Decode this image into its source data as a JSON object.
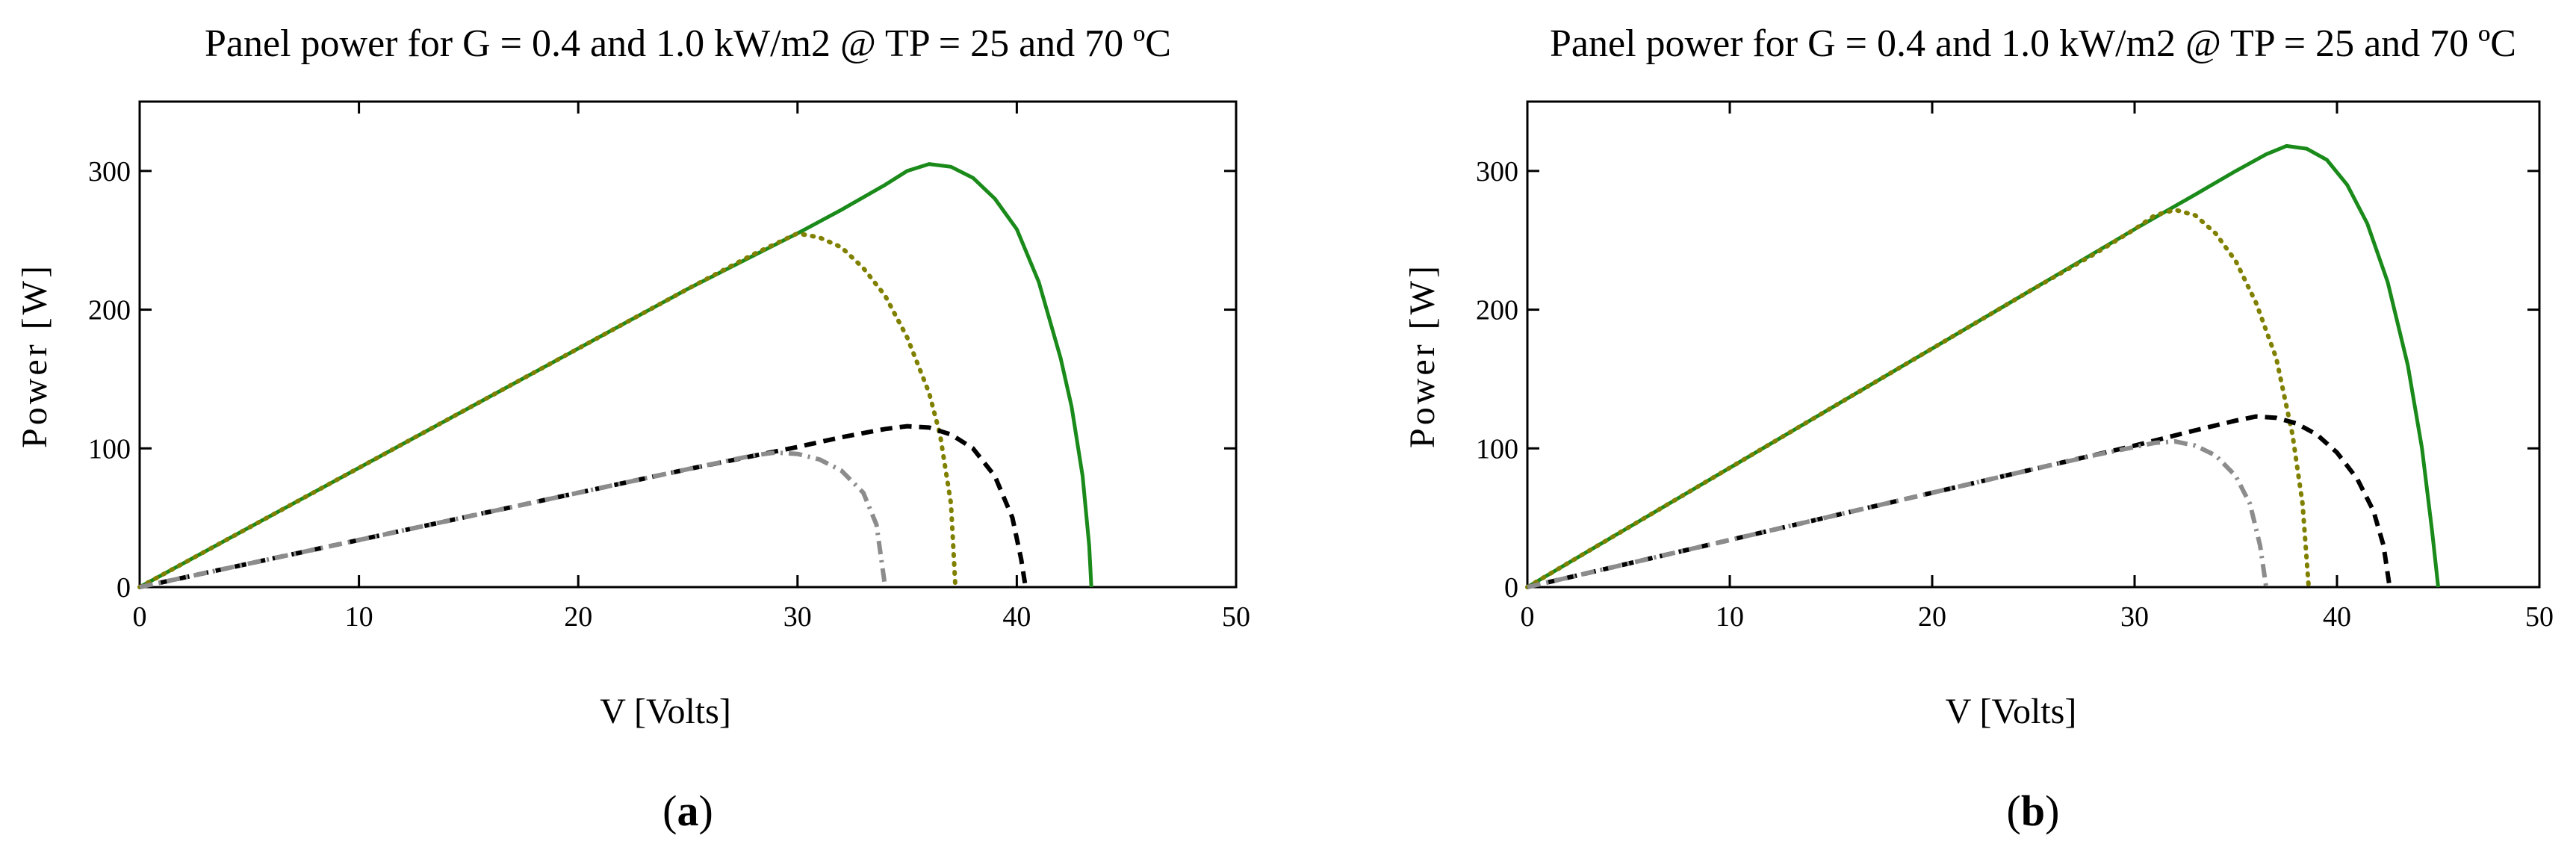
{
  "chart_data": [
    {
      "type": "line",
      "panel_label": "(a)",
      "title": "Panel power for G = 0.4 and 1.0 kW/m2 @ TP = 25 and 70 ºC",
      "xlabel": "V [Volts]",
      "ylabel": "Power [W]",
      "xlim": [
        0,
        50
      ],
      "ylim": [
        0,
        350
      ],
      "xticks": [
        0,
        10,
        20,
        30,
        40,
        50
      ],
      "yticks": [
        0,
        100,
        200,
        300
      ],
      "grid": false,
      "series": [
        {
          "color": "#1a8a1a",
          "style": "solid",
          "points": [
            [
              0,
              0
            ],
            [
              5,
              43
            ],
            [
              10,
              86
            ],
            [
              15,
              129
            ],
            [
              20,
              172
            ],
            [
              25,
              215
            ],
            [
              30,
              255
            ],
            [
              32,
              272
            ],
            [
              34,
              290
            ],
            [
              35,
              300
            ],
            [
              36,
              305
            ],
            [
              37,
              303
            ],
            [
              38,
              295
            ],
            [
              39,
              280
            ],
            [
              40,
              258
            ],
            [
              41,
              220
            ],
            [
              42,
              165
            ],
            [
              42.5,
              130
            ],
            [
              43,
              80
            ],
            [
              43.3,
              30
            ],
            [
              43.4,
              0
            ]
          ]
        },
        {
          "color": "#808000",
          "style": "dotted",
          "points": [
            [
              0,
              0
            ],
            [
              5,
              43
            ],
            [
              10,
              86
            ],
            [
              15,
              129
            ],
            [
              20,
              172
            ],
            [
              25,
              215
            ],
            [
              28,
              240
            ],
            [
              30,
              255
            ],
            [
              31,
              252
            ],
            [
              32,
              245
            ],
            [
              33,
              230
            ],
            [
              34,
              210
            ],
            [
              35,
              180
            ],
            [
              36,
              140
            ],
            [
              36.5,
              110
            ],
            [
              37,
              60
            ],
            [
              37.2,
              0
            ]
          ]
        },
        {
          "color": "#000000",
          "style": "dashed",
          "points": [
            [
              0,
              0
            ],
            [
              5,
              17
            ],
            [
              10,
              34
            ],
            [
              15,
              51
            ],
            [
              20,
              68
            ],
            [
              25,
              85
            ],
            [
              30,
              101
            ],
            [
              32,
              108
            ],
            [
              34,
              114
            ],
            [
              35,
              116
            ],
            [
              36,
              115
            ],
            [
              37,
              110
            ],
            [
              38,
              100
            ],
            [
              39,
              80
            ],
            [
              39.8,
              50
            ],
            [
              40.2,
              20
            ],
            [
              40.4,
              0
            ]
          ]
        },
        {
          "color": "#8c8c8c",
          "style": "dash-dot",
          "points": [
            [
              0,
              0
            ],
            [
              5,
              17
            ],
            [
              10,
              34
            ],
            [
              15,
              51
            ],
            [
              20,
              68
            ],
            [
              25,
              85
            ],
            [
              28,
              95
            ],
            [
              29,
              97
            ],
            [
              30,
              96
            ],
            [
              31,
              92
            ],
            [
              32,
              84
            ],
            [
              33,
              68
            ],
            [
              33.6,
              45
            ],
            [
              34,
              0
            ]
          ]
        }
      ]
    },
    {
      "type": "line",
      "panel_label": "(b)",
      "title": "Panel power for G = 0.4 and 1.0 kW/m2 @ TP = 25 and 70 ºC",
      "xlabel": "V [Volts]",
      "ylabel": "Power [W]",
      "xlim": [
        0,
        50
      ],
      "ylim": [
        0,
        350
      ],
      "xticks": [
        0,
        10,
        20,
        30,
        40,
        50
      ],
      "yticks": [
        0,
        100,
        200,
        300
      ],
      "grid": false,
      "series": [
        {
          "color": "#1a8a1a",
          "style": "solid",
          "points": [
            [
              0,
              0
            ],
            [
              5,
              43
            ],
            [
              10,
              86
            ],
            [
              15,
              129
            ],
            [
              20,
              172
            ],
            [
              25,
              215
            ],
            [
              30,
              258
            ],
            [
              33,
              283
            ],
            [
              35,
              300
            ],
            [
              36.5,
              312
            ],
            [
              37.5,
              318
            ],
            [
              38.5,
              316
            ],
            [
              39.5,
              308
            ],
            [
              40.5,
              290
            ],
            [
              41.5,
              262
            ],
            [
              42.5,
              220
            ],
            [
              43.5,
              160
            ],
            [
              44.2,
              100
            ],
            [
              44.7,
              40
            ],
            [
              45,
              0
            ]
          ]
        },
        {
          "color": "#808000",
          "style": "dotted",
          "points": [
            [
              0,
              0
            ],
            [
              5,
              43
            ],
            [
              10,
              86
            ],
            [
              15,
              129
            ],
            [
              20,
              172
            ],
            [
              25,
              215
            ],
            [
              28,
              240
            ],
            [
              30,
              258
            ],
            [
              31,
              268
            ],
            [
              32,
              272
            ],
            [
              33,
              268
            ],
            [
              34,
              255
            ],
            [
              35,
              235
            ],
            [
              36,
              205
            ],
            [
              37,
              165
            ],
            [
              37.8,
              110
            ],
            [
              38.3,
              60
            ],
            [
              38.6,
              0
            ]
          ]
        },
        {
          "color": "#000000",
          "style": "dashed",
          "points": [
            [
              0,
              0
            ],
            [
              5,
              17
            ],
            [
              10,
              34
            ],
            [
              15,
              51
            ],
            [
              20,
              68
            ],
            [
              25,
              85
            ],
            [
              30,
              102
            ],
            [
              33,
              113
            ],
            [
              35,
              120
            ],
            [
              36,
              123
            ],
            [
              37,
              122
            ],
            [
              38,
              118
            ],
            [
              39,
              110
            ],
            [
              40,
              97
            ],
            [
              41,
              78
            ],
            [
              41.8,
              55
            ],
            [
              42.3,
              30
            ],
            [
              42.6,
              0
            ]
          ]
        },
        {
          "color": "#8c8c8c",
          "style": "dash-dot",
          "points": [
            [
              0,
              0
            ],
            [
              5,
              17
            ],
            [
              10,
              34
            ],
            [
              15,
              51
            ],
            [
              20,
              68
            ],
            [
              25,
              85
            ],
            [
              28,
              95
            ],
            [
              30,
              101
            ],
            [
              31,
              104
            ],
            [
              32,
              105
            ],
            [
              33,
              102
            ],
            [
              34,
              95
            ],
            [
              35,
              80
            ],
            [
              35.7,
              60
            ],
            [
              36.2,
              30
            ],
            [
              36.5,
              0
            ]
          ]
        }
      ]
    }
  ]
}
